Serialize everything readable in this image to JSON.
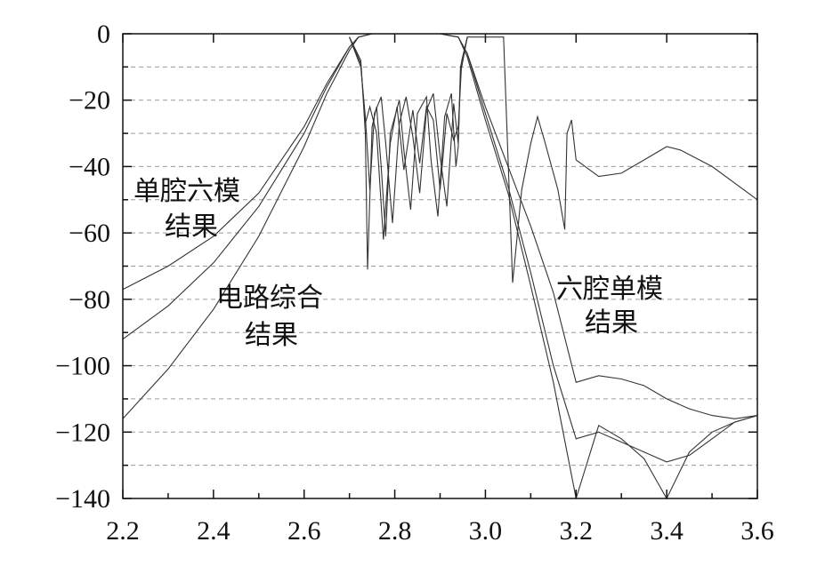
{
  "chart_data": {
    "type": "line",
    "xlim": [
      2.2,
      3.6
    ],
    "ylim": [
      -140,
      0
    ],
    "grid": true,
    "xticks": [
      2.2,
      2.4,
      2.6,
      2.8,
      3.0,
      3.2,
      3.4,
      3.6
    ],
    "x_tick_labels": [
      "2.2",
      "2.4",
      "2.6",
      "2.8",
      "3.0",
      "3.2",
      "3.4",
      "3.6"
    ],
    "yticks": [
      0,
      -20,
      -40,
      -60,
      -80,
      -100,
      -120,
      -140
    ],
    "y_tick_labels": [
      "0",
      "−20",
      "−40",
      "−60",
      "−80",
      "−100",
      "−120",
      "−140"
    ],
    "annotations": [
      {
        "text_lines": [
          "单腔六模",
          "结果"
        ]
      },
      {
        "text_lines": [
          "电路综合",
          "结果"
        ]
      },
      {
        "text_lines": [
          "六腔单模",
          "结果"
        ]
      }
    ],
    "series": [
      {
        "kind": "S21",
        "x": [
          2.2,
          2.3,
          2.4,
          2.5,
          2.6,
          2.65,
          2.7,
          2.72,
          2.75,
          2.8,
          2.9,
          2.94,
          2.96,
          3.0,
          3.05,
          3.1,
          3.15,
          3.2,
          3.25,
          3.3,
          3.35,
          3.4,
          3.45,
          3.5,
          3.55,
          3.6
        ],
        "y": [
          -77,
          -70,
          -61,
          -48,
          -28,
          -15,
          -4,
          -1,
          0,
          0,
          0,
          -1,
          -6,
          -22,
          -40,
          -58,
          -78,
          -105,
          -103,
          -104,
          -106,
          -110,
          -113,
          -115,
          -116,
          -115
        ]
      },
      {
        "kind": "S21",
        "x": [
          2.2,
          2.3,
          2.4,
          2.5,
          2.6,
          2.65,
          2.7,
          2.72,
          2.75,
          2.8,
          2.9,
          2.94,
          2.96,
          3.0,
          3.05,
          3.1,
          3.15,
          3.2,
          3.25,
          3.3,
          3.35,
          3.4,
          3.45,
          3.5,
          3.55,
          3.6
        ],
        "y": [
          -92,
          -82,
          -69,
          -52,
          -30,
          -16,
          -4,
          -1,
          0,
          0,
          0,
          -1,
          -6,
          -24,
          -46,
          -72,
          -100,
          -122,
          -120,
          -123,
          -126,
          -129,
          -127,
          -122,
          -117,
          -115
        ]
      },
      {
        "kind": "S21",
        "x": [
          2.2,
          2.3,
          2.4,
          2.5,
          2.6,
          2.65,
          2.7,
          2.72,
          2.75,
          2.8,
          2.9,
          2.94,
          2.96,
          3.0,
          3.05,
          3.1,
          3.15,
          3.2,
          3.25,
          3.3,
          3.35,
          3.4,
          3.45,
          3.5,
          3.55,
          3.6
        ],
        "y": [
          -116,
          -101,
          -83,
          -61,
          -34,
          -18,
          -5,
          -1,
          0,
          0,
          0,
          -1,
          -7,
          -26,
          -48,
          -76,
          -105,
          -140,
          -118,
          -122,
          -128,
          -140,
          -126,
          -120,
          -117,
          -115
        ]
      },
      {
        "kind": "S11",
        "x": [
          2.7,
          2.725,
          2.735,
          2.74,
          2.75,
          2.76,
          2.77,
          2.78,
          2.79,
          2.81,
          2.82,
          2.835,
          2.85,
          2.87,
          2.88,
          2.895,
          2.91,
          2.925,
          2.935,
          2.94,
          2.945,
          2.96
        ],
        "y": [
          -1,
          -8,
          -30,
          -71,
          -28,
          -22,
          -40,
          -61,
          -30,
          -20,
          -35,
          -53,
          -24,
          -19,
          -38,
          -55,
          -25,
          -18,
          -40,
          -34,
          -10,
          -1
        ]
      },
      {
        "kind": "S11",
        "x": [
          2.7,
          2.725,
          2.735,
          2.745,
          2.755,
          2.77,
          2.78,
          2.795,
          2.81,
          2.825,
          2.84,
          2.855,
          2.87,
          2.885,
          2.9,
          2.915,
          2.93,
          2.94,
          2.945,
          2.96
        ],
        "y": [
          -1,
          -10,
          -25,
          -47,
          -24,
          -19,
          -33,
          -57,
          -27,
          -19,
          -31,
          -48,
          -23,
          -18,
          -37,
          -52,
          -21,
          -33,
          -12,
          -1
        ]
      },
      {
        "kind": "S11",
        "x": [
          2.7,
          2.725,
          2.735,
          2.745,
          2.76,
          2.775,
          2.79,
          2.805,
          2.82,
          2.84,
          2.855,
          2.87,
          2.885,
          2.9,
          2.915,
          2.93,
          2.94,
          2.948,
          2.96,
          2.98,
          3.0,
          3.02,
          3.04,
          3.06,
          3.08,
          3.1,
          3.115,
          3.13,
          3.16,
          3.175,
          3.18,
          3.19,
          3.2,
          3.25,
          3.3,
          3.35,
          3.4,
          3.43,
          3.5,
          3.55,
          3.6
        ],
        "y": [
          -1,
          -9,
          -27,
          -22,
          -30,
          -62,
          -33,
          -22,
          -41,
          -23,
          -39,
          -22,
          -26,
          -47,
          -24,
          -32,
          -28,
          -8,
          -1,
          -1,
          -1,
          -1,
          -1,
          -75,
          -47,
          -33,
          -25,
          -32,
          -47,
          -59,
          -30,
          -26,
          -38,
          -43,
          -42,
          -38,
          -34,
          -35,
          -40,
          -45,
          -50
        ]
      }
    ]
  }
}
